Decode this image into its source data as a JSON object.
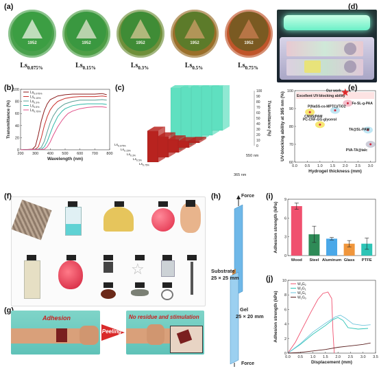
{
  "panel_labels": {
    "a": "(a)",
    "b": "(b)",
    "c": "(c)",
    "d": "(d)",
    "e": "(e)",
    "f": "(f)",
    "g": "(g)",
    "h": "(h)",
    "i": "(i)",
    "j": "(j)"
  },
  "coins": [
    {
      "base": "Ls",
      "sub": "0.075%",
      "color": "#3c9e43",
      "ring": "#4aa14d",
      "emblem": "#d6e8d0"
    },
    {
      "base": "Ls",
      "sub": "0.15%",
      "color": "#3a9840",
      "ring": "#4e9e46",
      "emblem": "#cfdcbf"
    },
    {
      "base": "Ls",
      "sub": "0.3%",
      "color": "#3f8c36",
      "ring": "#6f8f3a",
      "emblem": "#c4c088"
    },
    {
      "base": "Ls",
      "sub": "0.5%",
      "color": "#5c7b2a",
      "ring": "#9a6f2a",
      "emblem": "#c09a60"
    },
    {
      "base": "Ls",
      "sub": "0.75%",
      "color": "#7a5a22",
      "ring": "#c0552a",
      "emblem": "#c27a4c"
    }
  ],
  "coin_year": "1952",
  "chart_data": [
    {
      "panel": "b",
      "type": "line",
      "xlabel": "Wavelength (nm)",
      "ylabel": "Transmittance (%)",
      "xlim": [
        200,
        800
      ],
      "ylim": [
        0,
        100
      ],
      "xticks": [
        "200",
        "300",
        "400",
        "500",
        "600",
        "700",
        "800"
      ],
      "yticks": [
        "0",
        "20",
        "40",
        "60",
        "80",
        "100"
      ],
      "legend_position": "top-left",
      "series": [
        {
          "name": "Ls0.075%",
          "legend_base": "Ls",
          "legend_sub": "0.075%",
          "color": "#8b1a1a",
          "x": [
            200,
            280,
            300,
            320,
            340,
            360,
            380,
            400,
            450,
            500,
            550,
            600,
            650,
            700,
            750,
            780
          ],
          "y": [
            0,
            1,
            6,
            25,
            48,
            65,
            76,
            83,
            89,
            91,
            92,
            92,
            92,
            92,
            93,
            91
          ]
        },
        {
          "name": "Ls0.15%",
          "legend_base": "Ls",
          "legend_sub": "0.15%",
          "color": "#c9302c",
          "x": [
            200,
            300,
            320,
            340,
            360,
            380,
            400,
            420,
            450,
            500,
            550,
            600,
            650,
            700,
            750,
            780
          ],
          "y": [
            0,
            1,
            5,
            20,
            40,
            55,
            66,
            73,
            80,
            85,
            87,
            88,
            88,
            88,
            89,
            88
          ]
        },
        {
          "name": "Ls0.3%",
          "legend_base": "Ls",
          "legend_sub": "0.3%",
          "color": "#5a9f95",
          "x": [
            200,
            320,
            340,
            360,
            380,
            400,
            420,
            450,
            480,
            500,
            550,
            600,
            650,
            700,
            750,
            780
          ],
          "y": [
            0,
            1,
            4,
            14,
            30,
            45,
            56,
            67,
            73,
            76,
            80,
            82,
            82,
            82,
            83,
            82
          ]
        },
        {
          "name": "Ls0.5%",
          "legend_base": "Ls",
          "legend_sub": "0.5%",
          "color": "#2fb8a8",
          "x": [
            200,
            340,
            360,
            380,
            400,
            420,
            450,
            480,
            500,
            550,
            600,
            650,
            700,
            750,
            780
          ],
          "y": [
            0,
            1,
            5,
            14,
            27,
            40,
            55,
            64,
            68,
            73,
            75,
            76,
            76,
            76,
            75
          ]
        },
        {
          "name": "Ls0.75%",
          "legend_base": "Ls",
          "legend_sub": "0.75%",
          "color": "#e0528a",
          "x": [
            200,
            360,
            380,
            400,
            420,
            450,
            480,
            500,
            520,
            550,
            600,
            650,
            700,
            750,
            780
          ],
          "y": [
            0,
            1,
            5,
            13,
            24,
            38,
            49,
            55,
            60,
            64,
            68,
            70,
            71,
            71,
            70
          ]
        }
      ]
    },
    {
      "panel": "c",
      "type": "bar",
      "zlabel": "Transmittance (%)",
      "zticks": [
        "0",
        "10",
        "20",
        "30",
        "40",
        "50",
        "60",
        "70",
        "80",
        "90",
        "100"
      ],
      "row_labels": [
        "365 nm",
        "550 nm"
      ],
      "categories": [
        "Ls0.075%",
        "Ls0.15%",
        "Ls0.3%",
        "Ls0.5%",
        "Ls0.75%"
      ],
      "category_labels": [
        {
          "base": "Ls",
          "sub": "0.075%"
        },
        {
          "base": "Ls",
          "sub": "0.15%"
        },
        {
          "base": "Ls",
          "sub": "0.3%"
        },
        {
          "base": "Ls",
          "sub": "0.5%"
        },
        {
          "base": "Ls",
          "sub": "0.75%"
        }
      ],
      "series": [
        {
          "name": "365 nm",
          "color": "#b8231f",
          "values": [
            48,
            32,
            20,
            10,
            3
          ]
        },
        {
          "name": "550 nm",
          "color": "#5fe0c0",
          "values": [
            95,
            88,
            82,
            75,
            68
          ]
        }
      ]
    },
    {
      "panel": "e",
      "type": "scatter",
      "xlabel": "Hydrogel thickness (mm)",
      "ylabel": "UV-blocking ability at 365 nm (%)",
      "xlim": [
        0,
        3.2
      ],
      "ylim": [
        0,
        100
      ],
      "xticks": [
        "0.0",
        "0.5",
        "1.0",
        "1.5",
        "2.0",
        "2.5",
        "3.0"
      ],
      "yticks": [
        "0",
        "20",
        "40",
        "60",
        "80",
        "100"
      ],
      "annotation": "Excellent UV-blocking ability",
      "points": [
        {
          "label": "Our work",
          "x": 2.0,
          "y": 99,
          "color": "#e0282a",
          "marker": "star"
        },
        {
          "label": "Fe-SL-g-PAA",
          "x": 2.1,
          "y": 93,
          "color": "#f0b0c0",
          "marker": "circle"
        },
        {
          "label": "P(NaSS-co-MPTC)/TiO2",
          "x": 1.6,
          "y": 89,
          "color": "#b0e0f0",
          "marker": "circle"
        },
        {
          "label": "CNNS/PAM",
          "x": 0.6,
          "y": 88,
          "color": "#f5e050",
          "marker": "circle"
        },
        {
          "label": "PC-CNF-GG-glycerol",
          "x": 1.0,
          "y": 81,
          "color": "#f5e050",
          "marker": "circle"
        },
        {
          "label": "TA@SL-PAM",
          "x": 2.9,
          "y": 78,
          "color": "#b0e0f0",
          "marker": "circle"
        },
        {
          "label": "PVA-TA@talc",
          "x": 3.0,
          "y": 70,
          "color": "#c0c0d0",
          "marker": "circle"
        }
      ]
    },
    {
      "panel": "i",
      "type": "bar",
      "ylabel": "Adhesion strength (kPa)",
      "ylim": [
        0,
        9
      ],
      "yticks": [
        "0",
        "3",
        "6",
        "9"
      ],
      "categories": [
        "Wood",
        "Steel",
        "Aluminum",
        "Glass",
        "PTFE"
      ],
      "values": [
        7.9,
        3.4,
        2.7,
        1.9,
        1.9
      ],
      "errors": [
        0.5,
        1.3,
        0.2,
        0.5,
        0.9
      ],
      "colors": [
        "#f0506e",
        "#2e8b57",
        "#4aa8e8",
        "#f0963c",
        "#2ec4b6"
      ]
    },
    {
      "panel": "j",
      "type": "line",
      "xlabel": "Displacement (mm)",
      "ylabel": "Adhesion strength (kPa)",
      "xlim": [
        0,
        3.5
      ],
      "ylim": [
        0,
        10
      ],
      "xticks": [
        "0.0",
        "0.5",
        "1.0",
        "1.5",
        "2.0",
        "2.5",
        "3.0",
        "3.5"
      ],
      "yticks": [
        "0",
        "2",
        "4",
        "6",
        "8",
        "10"
      ],
      "legend_position": "top-left",
      "series": [
        {
          "name": "W3G2",
          "legend_base": "W",
          "legend_sub1": "3",
          "legend_mid": "G",
          "legend_sub2": "2",
          "color": "#f0506e",
          "x": [
            0,
            0.3,
            0.6,
            0.9,
            1.2,
            1.4,
            1.6,
            1.75,
            1.8,
            1.85
          ],
          "y": [
            0,
            1.5,
            3.5,
            5.5,
            7.4,
            8.2,
            8.4,
            7.5,
            3,
            0
          ]
        },
        {
          "name": "W2G1",
          "legend_base": "W",
          "legend_sub1": "2",
          "legend_mid": "G",
          "legend_sub2": "1",
          "color": "#2ec4b6",
          "x": [
            0,
            0.5,
            1.0,
            1.5,
            1.8,
            2.0,
            2.2,
            2.4,
            2.8,
            3.2
          ],
          "y": [
            0,
            1.2,
            2.6,
            3.8,
            4.6,
            4.9,
            4.5,
            3.5,
            3.3,
            3.4
          ]
        },
        {
          "name": "W1G1",
          "legend_base": "W",
          "legend_sub1": "1",
          "legend_mid": "G",
          "legend_sub2": "1",
          "color": "#6ec5dc",
          "x": [
            0,
            0.5,
            1.0,
            1.5,
            1.9,
            2.1,
            2.3,
            2.6,
            3.0,
            3.3
          ],
          "y": [
            0,
            1.3,
            2.9,
            4.1,
            5.0,
            5.2,
            4.8,
            4.0,
            3.8,
            3.9
          ]
        },
        {
          "name": "W1G0",
          "legend_base": "W",
          "legend_sub1": "1",
          "legend_mid": "G",
          "legend_sub2": "0",
          "color": "#5a1f1f",
          "x": [
            0,
            0.5,
            1.0,
            1.5,
            2.0,
            2.5,
            3.0,
            3.3
          ],
          "y": [
            0,
            0.1,
            0.3,
            0.5,
            0.8,
            1.0,
            1.2,
            1.4
          ]
        }
      ]
    }
  ],
  "panel_g": {
    "adhesion": "Adhesion",
    "peeling": "Peeling",
    "no_residue": "No residue and stimulation"
  },
  "panel_h": {
    "force_top": "Force",
    "force_bottom": "Force",
    "substrate": "Substrate",
    "substrate_size": "25 × 25 mm",
    "gel": "Gel",
    "gel_size": "25 × 20 mm"
  },
  "colors": {
    "accent_red": "#e0282a",
    "teal": "#5fe0c0"
  }
}
